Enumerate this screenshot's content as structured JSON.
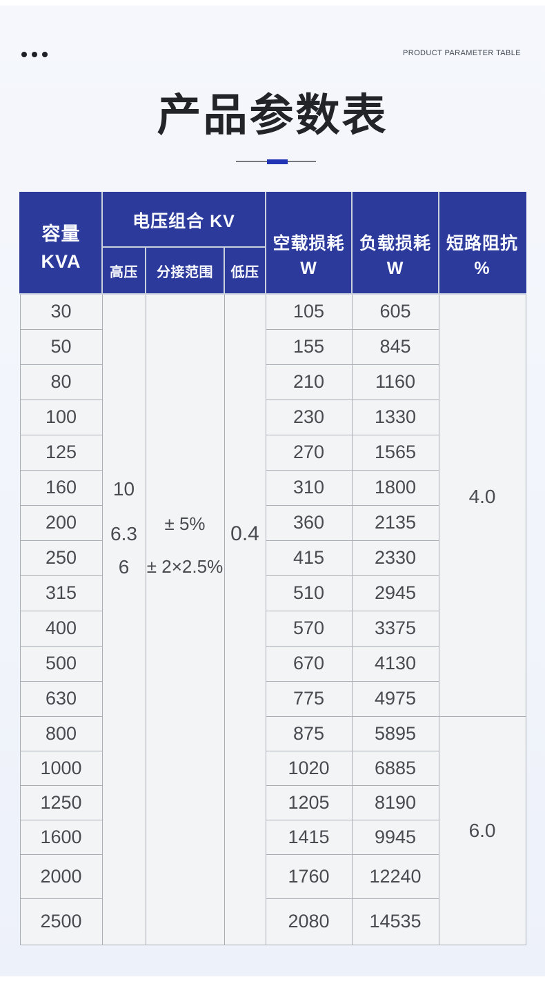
{
  "page": {
    "eyebrow": "PRODUCT PARAMETER TABLE",
    "title": "产品参数表"
  },
  "colors": {
    "header_blue": "#2c3a9c",
    "accent_blue": "#2134b4"
  },
  "table": {
    "header": {
      "capacity_line1": "容量",
      "capacity_line2": "KVA",
      "voltage_group": "电压组合 KV",
      "high_voltage": "高压",
      "tap_range": "分接范围",
      "low_voltage": "低压",
      "no_load_line1": "空载损耗",
      "no_load_line2": "W",
      "load_line1": "负载损耗",
      "load_line2": "W",
      "impedance_line1": "短路阻抗",
      "impedance_line2": "%"
    },
    "merged": {
      "high_voltage": [
        "10",
        "6.3",
        "6"
      ],
      "tap_range": [
        "± 5%",
        "± 2×2.5%"
      ],
      "low_voltage": "0.4"
    },
    "impedance_groups": [
      {
        "value": "4.0",
        "row_span": 12
      },
      {
        "value": "6.0",
        "row_span": 6
      }
    ],
    "rows": [
      {
        "kva": "30",
        "no_load": "105",
        "load": "605"
      },
      {
        "kva": "50",
        "no_load": "155",
        "load": "845"
      },
      {
        "kva": "80",
        "no_load": "210",
        "load": "1160"
      },
      {
        "kva": "100",
        "no_load": "230",
        "load": "1330"
      },
      {
        "kva": "125",
        "no_load": "270",
        "load": "1565"
      },
      {
        "kva": "160",
        "no_load": "310",
        "load": "1800"
      },
      {
        "kva": "200",
        "no_load": "360",
        "load": "2135"
      },
      {
        "kva": "250",
        "no_load": "415",
        "load": "2330"
      },
      {
        "kva": "315",
        "no_load": "510",
        "load": "2945"
      },
      {
        "kva": "400",
        "no_load": "570",
        "load": "3375"
      },
      {
        "kva": "500",
        "no_load": "670",
        "load": "4130"
      },
      {
        "kva": "630",
        "no_load": "775",
        "load": "4975"
      },
      {
        "kva": "800",
        "no_load": "875",
        "load": "5895"
      },
      {
        "kva": "1000",
        "no_load": "1020",
        "load": "6885"
      },
      {
        "kva": "1250",
        "no_load": "1205",
        "load": "8190"
      },
      {
        "kva": "1600",
        "no_load": "1415",
        "load": "9945"
      },
      {
        "kva": "2000",
        "no_load": "1760",
        "load": "12240"
      },
      {
        "kva": "2500",
        "no_load": "2080",
        "load": "14535"
      }
    ]
  }
}
